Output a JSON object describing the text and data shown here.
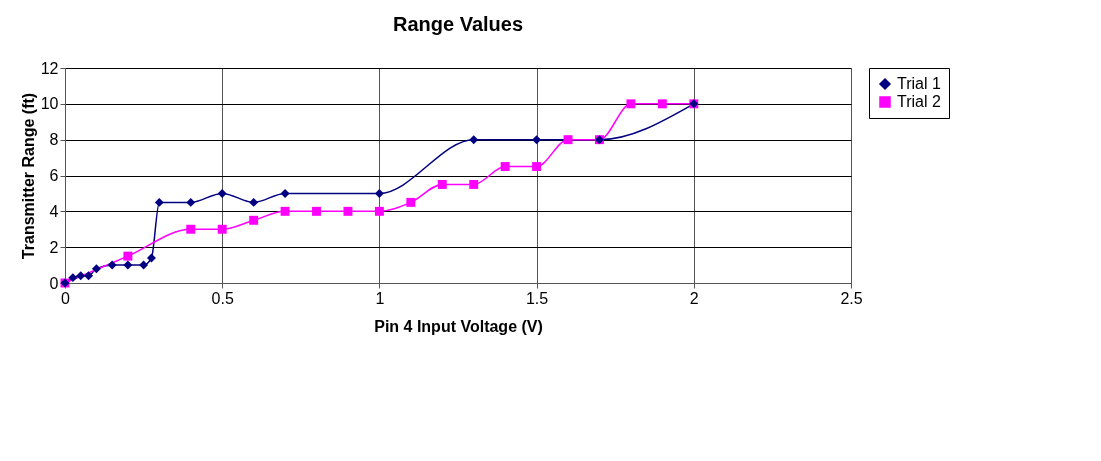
{
  "chart_data": {
    "type": "line",
    "title": "Range Values",
    "xlabel": "Pin 4 Input Voltage (V)",
    "ylabel": "Transmitter Range (ft)",
    "xlim": [
      0,
      2.5
    ],
    "xticks": [
      0,
      0.5,
      1,
      1.5,
      2,
      2.5
    ],
    "ylim": [
      0,
      12
    ],
    "yticks": [
      0,
      2,
      4,
      6,
      8,
      10,
      12
    ],
    "grid": true,
    "legend": "right",
    "series": [
      {
        "name": "Trial 1",
        "color": "#000080",
        "marker": "diamond",
        "x": [
          0,
          0.025,
          0.05,
          0.075,
          0.1,
          0.15,
          0.2,
          0.25,
          0.275,
          0.3,
          0.4,
          0.5,
          0.6,
          0.7,
          1.0,
          1.3,
          1.5,
          1.7,
          2.0
        ],
        "values": [
          0,
          0.3,
          0.4,
          0.4,
          0.8,
          1,
          1,
          1,
          1.4,
          4.5,
          4.5,
          5,
          4.5,
          5,
          5,
          8,
          8,
          8,
          10
        ]
      },
      {
        "name": "Trial 2",
        "color": "#ff00ff",
        "marker": "square",
        "x": [
          0,
          0.2,
          0.4,
          0.5,
          0.6,
          0.7,
          0.8,
          0.9,
          1.0,
          1.1,
          1.2,
          1.3,
          1.4,
          1.5,
          1.6,
          1.7,
          1.8,
          1.9,
          2.0
        ],
        "values": [
          0,
          1.5,
          3,
          3,
          3.5,
          4,
          4,
          4,
          4,
          4.5,
          5.5,
          5.5,
          6.5,
          6.5,
          8,
          8,
          10,
          10,
          10
        ]
      }
    ]
  }
}
